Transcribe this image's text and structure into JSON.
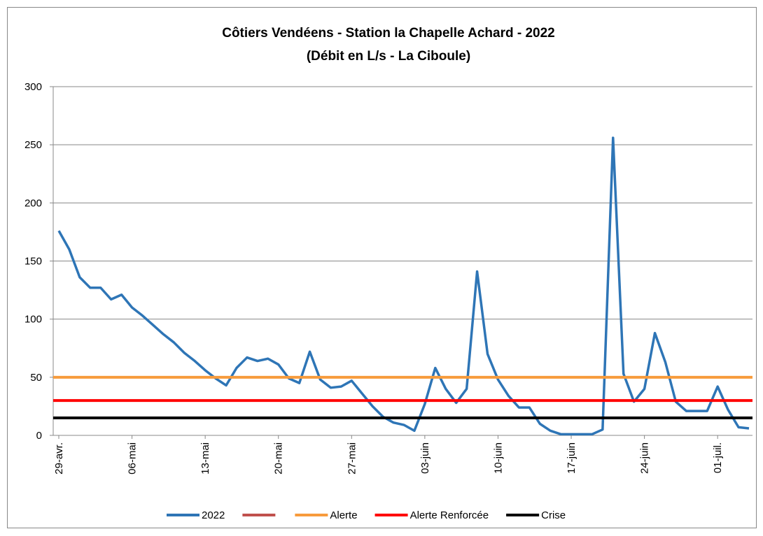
{
  "chart_data": {
    "type": "line",
    "title": "Côtiers Vendéens - Station la Chapelle Achard - 2022",
    "subtitle": "(Débit en L/s - La Ciboule)",
    "categories": [
      "29-avr.",
      null,
      null,
      null,
      null,
      null,
      null,
      "06-mai",
      null,
      null,
      null,
      null,
      null,
      null,
      "13-mai",
      null,
      null,
      null,
      null,
      null,
      null,
      "20-mai",
      null,
      null,
      null,
      null,
      null,
      null,
      "27-mai",
      null,
      null,
      null,
      null,
      null,
      null,
      "03-juin",
      null,
      null,
      null,
      null,
      null,
      null,
      "10-juin",
      null,
      null,
      null,
      null,
      null,
      null,
      "17-juin",
      null,
      null,
      null,
      null,
      null,
      null,
      "24-juin",
      null,
      null,
      null,
      null,
      null,
      null,
      "01-juil.",
      null,
      null,
      null
    ],
    "series": [
      {
        "name": "2022",
        "color": "#2e75b6",
        "values": [
          176,
          160,
          136,
          127,
          127,
          117,
          121,
          110,
          103,
          95,
          87,
          80,
          71,
          64,
          56,
          49,
          43,
          58,
          67,
          64,
          66,
          61,
          49,
          45,
          72,
          48,
          41,
          42,
          47,
          36,
          25,
          16,
          11,
          9,
          4,
          27,
          58,
          40,
          28,
          40,
          141,
          70,
          48,
          34,
          24,
          24,
          10,
          4,
          1,
          1,
          1,
          1,
          5,
          256,
          53,
          29,
          40,
          88,
          63,
          29,
          21,
          21,
          21,
          42,
          22,
          7,
          6
        ]
      },
      {
        "color": "#c0504d",
        "values": [
          null,
          null,
          null,
          null,
          null,
          null,
          null,
          null,
          null,
          null,
          null,
          null,
          null,
          null,
          null,
          null,
          null,
          null,
          null,
          null,
          null,
          null,
          null,
          null,
          null,
          null,
          null,
          null,
          null,
          null,
          null,
          null,
          null,
          null,
          null,
          null,
          null,
          null,
          null,
          null,
          null,
          null,
          null,
          null,
          null,
          null,
          null,
          null,
          null,
          null,
          null,
          null,
          null,
          null,
          null,
          null,
          null,
          null,
          null,
          null,
          null,
          null,
          null,
          null,
          null,
          null,
          null
        ]
      },
      {
        "name": "Alerte",
        "color": "#f79b3c",
        "value": 50
      },
      {
        "name": "Alerte Renforcée",
        "color": "#ff0000",
        "value": 30
      },
      {
        "name": "Crise",
        "color": "#000000",
        "value": 15
      }
    ],
    "ylim": [
      0,
      300
    ],
    "yticks": [
      0,
      50,
      100,
      150,
      200,
      250,
      300
    ],
    "grid": true,
    "legend": "bottom"
  }
}
